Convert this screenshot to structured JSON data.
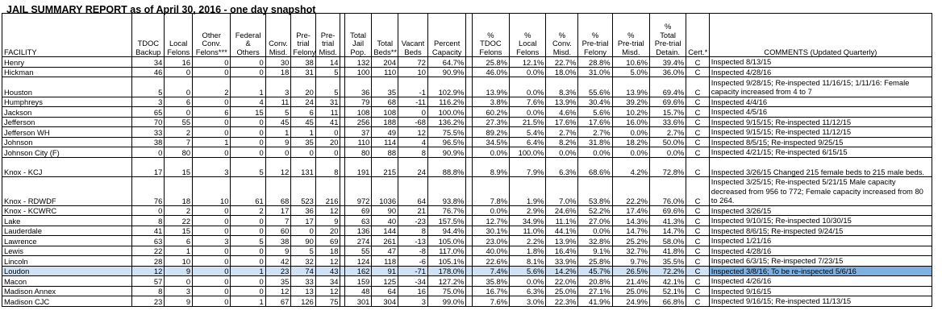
{
  "title": "JAIL SUMMARY REPORT as of April 30, 2016 - one day snapshot",
  "headers": {
    "facility": "FACILITY",
    "tdoc_backup": "TDOC Backup",
    "local_felons": "Local Felons",
    "other_conv": "Other Conv. Felons***",
    "federal": "Federal & Others",
    "conv_misd": "Conv. Misd.",
    "pretrial_felony": "Pre-trial Felony",
    "pretrial_misd": "Pre-trial Misd.",
    "total_jail": "Total Jail Pop.",
    "total_beds": "Total Beds**",
    "vacant_beds": "Vacant Beds",
    "percent_capacity": "Percent Capacity",
    "pct_tdoc": "% TDOC Felons",
    "pct_local": "% Local Felons",
    "pct_conv_misd": "% Conv. Misd.",
    "pct_pretrial_felony": "% Pre-trial Felony",
    "pct_pretrial_misd": "% Pre-trial Misd.",
    "pct_total_pretrial": "% Total Pre-trial Detain.",
    "cert": "Cert.*",
    "comments": "COMMENTS (Updated Quarterly)"
  },
  "rows": [
    {
      "facility": "Henry",
      "v": [
        "34",
        "16",
        "0",
        "0",
        "30",
        "38",
        "14",
        "132",
        "204",
        "72",
        "64.7%"
      ],
      "p": [
        "25.8%",
        "12.1%",
        "22.7%",
        "28.8%",
        "10.6%",
        "39.4%"
      ],
      "cert": "C",
      "comment": "Inspected 8/13/15",
      "size": "r1"
    },
    {
      "facility": "Hickman",
      "v": [
        "46",
        "0",
        "0",
        "0",
        "18",
        "31",
        "5",
        "100",
        "110",
        "10",
        "90.9%"
      ],
      "p": [
        "46.0%",
        "0.0%",
        "18.0%",
        "31.0%",
        "5.0%",
        "36.0%"
      ],
      "cert": "C",
      "comment": "Inspected 4/28/16",
      "size": "r1"
    },
    {
      "facility": "Houston",
      "v": [
        "5",
        "0",
        "2",
        "1",
        "3",
        "20",
        "5",
        "36",
        "35",
        "-1",
        "102.9%"
      ],
      "p": [
        "13.9%",
        "0.0%",
        "8.3%",
        "55.6%",
        "13.9%",
        "69.4%"
      ],
      "cert": "C",
      "comment": "Inspected 9/28/15; Re-inspected 11/16/15; 1/11/16:  Female capacity increased from 4 to 7",
      "size": "r2"
    },
    {
      "facility": "Humphreys",
      "v": [
        "3",
        "6",
        "0",
        "4",
        "11",
        "24",
        "31",
        "79",
        "68",
        "-11",
        "116.2%"
      ],
      "p": [
        "3.8%",
        "7.6%",
        "13.9%",
        "30.4%",
        "39.2%",
        "69.6%"
      ],
      "cert": "C",
      "comment": "Inspected 4/4/16",
      "size": "r1"
    },
    {
      "facility": "Jackson",
      "v": [
        "65",
        "0",
        "6",
        "15",
        "5",
        "6",
        "11",
        "108",
        "108",
        "0",
        "100.0%"
      ],
      "p": [
        "60.2%",
        "0.0%",
        "4.6%",
        "5.6%",
        "10.2%",
        "15.7%"
      ],
      "cert": "C",
      "comment": "Inspected 4/5/16",
      "size": "r1"
    },
    {
      "facility": "Jefferson",
      "v": [
        "70",
        "55",
        "0",
        "0",
        "45",
        "45",
        "41",
        "256",
        "188",
        "-68",
        "136.2%"
      ],
      "p": [
        "27.3%",
        "21.5%",
        "17.6%",
        "17.6%",
        "16.0%",
        "33.6%"
      ],
      "cert": "C",
      "comment": "Inspected 9/15/15; Re-inspected 11/12/15",
      "size": "r1"
    },
    {
      "facility": "Jefferson WH",
      "v": [
        "33",
        "2",
        "0",
        "0",
        "1",
        "1",
        "0",
        "37",
        "49",
        "12",
        "75.5%"
      ],
      "p": [
        "89.2%",
        "5.4%",
        "2.7%",
        "2.7%",
        "0.0%",
        "2.7%"
      ],
      "cert": "C",
      "comment": "Inspected 9/15/15; Re-inspected 11/12/15",
      "size": "r1"
    },
    {
      "facility": "Johnson",
      "v": [
        "38",
        "7",
        "1",
        "0",
        "9",
        "35",
        "20",
        "110",
        "114",
        "4",
        "96.5%"
      ],
      "p": [
        "34.5%",
        "6.4%",
        "8.2%",
        "31.8%",
        "18.2%",
        "50.0%"
      ],
      "cert": "C",
      "comment": "Inspected 8/5/15; Re-inspected 9/25/15",
      "size": "r1"
    },
    {
      "facility": "Johnson City (F)",
      "v": [
        "0",
        "80",
        "0",
        "0",
        "0",
        "0",
        "0",
        "80",
        "88",
        "8",
        "90.9%"
      ],
      "p": [
        "0.0%",
        "100.0%",
        "0.0%",
        "0.0%",
        "0.0%",
        "0.0%"
      ],
      "cert": "C",
      "comment": "Inspected 4/21/15; Re-inspected 6/15/15",
      "size": "r1"
    },
    {
      "facility": "Knox - KCJ",
      "v": [
        "17",
        "15",
        "3",
        "5",
        "12",
        "131",
        "8",
        "191",
        "215",
        "24",
        "88.8%"
      ],
      "p": [
        "8.9%",
        "7.9%",
        "6.3%",
        "68.6%",
        "4.2%",
        "72.8%"
      ],
      "cert": "C",
      "comment": "Inspected 3/26/15 Changed 215 female beds to 215 male beds.",
      "size": "r2"
    },
    {
      "facility": "Knox - RDWDF",
      "v": [
        "76",
        "18",
        "10",
        "61",
        "68",
        "523",
        "216",
        "972",
        "1036",
        "64",
        "93.8%"
      ],
      "p": [
        "7.8%",
        "1.9%",
        "7.0%",
        "53.8%",
        "22.2%",
        "76.0%"
      ],
      "cert": "C",
      "comment": "Inspected 3/25/15; Re-inspected 5/21/15 Male capacity decreased from 956 to 772; Female capacity increased from 80 to 264.",
      "size": "r3"
    },
    {
      "facility": "Knox - KCWRC",
      "v": [
        "0",
        "2",
        "0",
        "2",
        "17",
        "36",
        "12",
        "69",
        "90",
        "21",
        "76.7%"
      ],
      "p": [
        "0.0%",
        "2.9%",
        "24.6%",
        "52.2%",
        "17.4%",
        "69.6%"
      ],
      "cert": "C",
      "comment": "Inspected 3/26/15",
      "size": "r1"
    },
    {
      "facility": "Lake",
      "v": [
        "8",
        "22",
        "0",
        "0",
        "7",
        "17",
        "9",
        "63",
        "40",
        "-23",
        "157.5%"
      ],
      "p": [
        "12.7%",
        "34.9%",
        "11.1%",
        "27.0%",
        "14.3%",
        "41.3%"
      ],
      "cert": "C",
      "comment": "Inspected 9/10/15; Re-inspected 10/30/15",
      "size": "r1"
    },
    {
      "facility": "Lauderdale",
      "v": [
        "41",
        "15",
        "0",
        "0",
        "60",
        "0",
        "20",
        "136",
        "144",
        "8",
        "94.4%"
      ],
      "p": [
        "30.1%",
        "11.0%",
        "44.1%",
        "0.0%",
        "14.7%",
        "14.7%"
      ],
      "cert": "C",
      "comment": "Inspected 8/6/15; Re-inspected 9/24/15",
      "size": "r1"
    },
    {
      "facility": "Lawrence",
      "v": [
        "63",
        "6",
        "3",
        "5",
        "38",
        "90",
        "69",
        "274",
        "261",
        "-13",
        "105.0%"
      ],
      "p": [
        "23.0%",
        "2.2%",
        "13.9%",
        "32.8%",
        "25.2%",
        "58.0%"
      ],
      "cert": "C",
      "comment": "Inspected 1/21/16",
      "size": "r1"
    },
    {
      "facility": "Lewis",
      "v": [
        "22",
        "1",
        "0",
        "0",
        "9",
        "5",
        "18",
        "55",
        "47",
        "-8",
        "117.0%"
      ],
      "p": [
        "40.0%",
        "1.8%",
        "16.4%",
        "9.1%",
        "32.7%",
        "41.8%"
      ],
      "cert": "C",
      "comment": "Inspected 4/28/16",
      "size": "r1"
    },
    {
      "facility": "Lincoln",
      "v": [
        "28",
        "10",
        "0",
        "0",
        "42",
        "32",
        "12",
        "124",
        "118",
        "-6",
        "105.1%"
      ],
      "p": [
        "22.6%",
        "8.1%",
        "33.9%",
        "25.8%",
        "9.7%",
        "35.5%"
      ],
      "cert": "C",
      "comment": "Inspected 6/3/15; Re-inspected 7/23/15",
      "size": "r1"
    },
    {
      "facility": "Loudon",
      "v": [
        "12",
        "9",
        "0",
        "1",
        "23",
        "74",
        "43",
        "162",
        "91",
        "-71",
        "178.0%"
      ],
      "p": [
        "7.4%",
        "5.6%",
        "14.2%",
        "45.7%",
        "26.5%",
        "72.2%"
      ],
      "cert": "C",
      "comment": "Inspected 3/8/16; To be re-inspected 5/6/16",
      "size": "r1",
      "highlight": true
    },
    {
      "facility": "Macon",
      "v": [
        "57",
        "0",
        "0",
        "0",
        "35",
        "33",
        "34",
        "159",
        "125",
        "-34",
        "127.2%"
      ],
      "p": [
        "35.8%",
        "0.0%",
        "22.0%",
        "20.8%",
        "21.4%",
        "42.1%"
      ],
      "cert": "C",
      "comment": "Inspected 4/26/16",
      "size": "r1"
    },
    {
      "facility": "Madison Annex",
      "v": [
        "8",
        "3",
        "0",
        "0",
        "12",
        "13",
        "12",
        "48",
        "64",
        "16",
        "75.0%"
      ],
      "p": [
        "16.7%",
        "6.3%",
        "25.0%",
        "27.1%",
        "25.0%",
        "52.1%"
      ],
      "cert": "C",
      "comment": "Inspected 9/16/15",
      "size": "r1"
    },
    {
      "facility": "Madison CJC",
      "v": [
        "23",
        "9",
        "0",
        "1",
        "67",
        "126",
        "75",
        "301",
        "304",
        "3",
        "99.0%"
      ],
      "p": [
        "7.6%",
        "3.0%",
        "22.3%",
        "41.9%",
        "24.9%",
        "66.8%"
      ],
      "cert": "C",
      "comment": "Inspected 9/16/15; Re-inspected 11/13/15",
      "size": "r1"
    }
  ]
}
